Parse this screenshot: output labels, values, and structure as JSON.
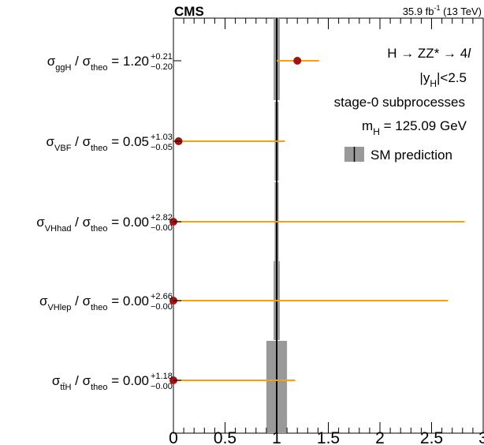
{
  "header": {
    "experiment": "CMS",
    "lumi_value": "35.9 fb",
    "lumi_exp": "-1",
    "energy": "(13 TeV)"
  },
  "legend": {
    "process_line": "H → ZZ* → 4",
    "process_line_italic": "l",
    "rapidity_prefix": "|y",
    "rapidity_sub": "H",
    "rapidity_suffix": "|<2.5",
    "stage_line": "stage-0 subprocesses",
    "mass_prefix": "m",
    "mass_sub": "H",
    "mass_suffix": " = 125.09 GeV",
    "sm_label": "SM prediction"
  },
  "colors": {
    "interval": "#f5a012",
    "marker": "#a01414",
    "sm_band": "#999999",
    "sm_line": "#000000",
    "axis": "#000000"
  },
  "chart_data": {
    "type": "scatter",
    "title": "",
    "xlabel": "",
    "ylabel": "",
    "xlim": [
      0,
      3
    ],
    "xticks": [
      "0",
      "0.5",
      "1",
      "1.5",
      "2",
      "2.5",
      "3"
    ],
    "xtick_values": [
      0,
      0.5,
      1,
      1.5,
      2,
      2.5,
      3
    ],
    "grid": false,
    "legend_position": "top-right",
    "sm_prediction": {
      "value": 1.0,
      "band_low": [
        0.97,
        0.98,
        0.98,
        0.97,
        0.9
      ],
      "band_high": [
        1.03,
        1.02,
        1.02,
        1.03,
        1.1
      ]
    },
    "series": [
      {
        "numerator": "ggH",
        "value": 1.2,
        "value_label": "1.20",
        "err_up": 0.21,
        "err_down": 0.2,
        "up_label": "+0.21",
        "down_label": "−0.20"
      },
      {
        "numerator": "VBF",
        "value": 0.05,
        "value_label": "0.05",
        "err_up": 1.03,
        "err_down": 0.05,
        "up_label": "+1.03",
        "down_label": "−0.05"
      },
      {
        "numerator": "VHhad",
        "value": 0.0,
        "value_label": "0.00",
        "err_up": 2.82,
        "err_down": 0.0,
        "up_label": "+2.82",
        "down_label": "−0.00"
      },
      {
        "numerator": "VHlep",
        "value": 0.0,
        "value_label": "0.00",
        "err_up": 2.66,
        "err_down": 0.0,
        "up_label": "+2.66",
        "down_label": "−0.00"
      },
      {
        "numerator": "tt̄H",
        "value": 0.0,
        "value_label": "0.00",
        "err_up": 1.18,
        "err_down": 0.0,
        "up_label": "+1.18",
        "down_label": "−0.00"
      }
    ],
    "denominator": "theo",
    "sigma_symbol": "σ",
    "slash": " / ",
    "equals": " = "
  }
}
